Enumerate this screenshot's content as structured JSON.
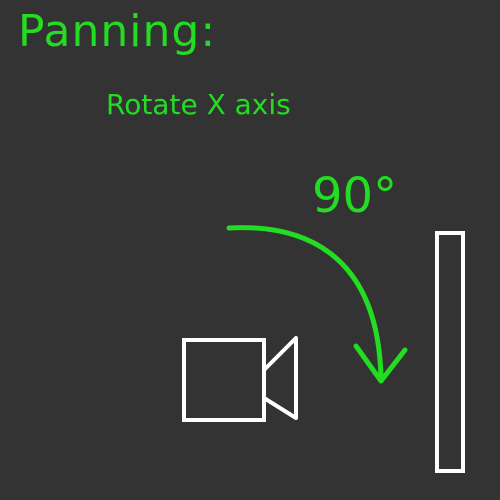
{
  "title": "Panning:",
  "subtitle": "Rotate X axis",
  "angle_label": "90°",
  "colors": {
    "background": "#333333",
    "annotation": "#22dd22",
    "outline": "#ffffff"
  },
  "icons": {
    "camera": "camera-icon",
    "wall": "wall-surface",
    "arrow": "curved-arrow-icon"
  }
}
